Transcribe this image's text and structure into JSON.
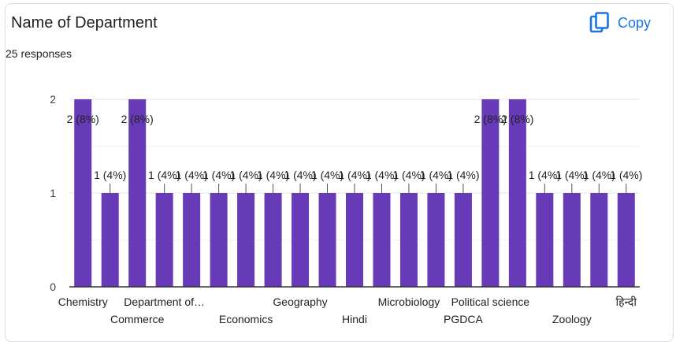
{
  "header": {
    "title": "Name of Department",
    "responses": "25 responses",
    "copy_label": "Copy",
    "copy_icon": "copy-icon",
    "accent_color": "#1a73e8"
  },
  "chart_data": {
    "type": "bar",
    "categories": [
      "Chemistry",
      "",
      "Commerce",
      "Department of…",
      "",
      "",
      "Economics",
      "",
      "Geography",
      "",
      "Hindi",
      "",
      "Microbiology",
      "",
      "PGDCA",
      "Political science",
      "",
      "",
      "Zoology",
      "",
      "हिन्दी"
    ],
    "values": [
      2,
      1,
      2,
      1,
      1,
      1,
      1,
      1,
      1,
      1,
      1,
      1,
      1,
      1,
      1,
      2,
      2,
      1,
      1,
      1,
      1
    ],
    "data_labels": [
      "2 (8%)",
      "1 (4%)",
      "2 (8%)",
      "1 (4%)",
      "1 (4%)",
      "1 (4%)",
      "1 (4%)",
      "1 (4%)",
      "1 (4%)",
      "1 (4%)",
      "1 (4%)",
      "1 (4%)",
      "1 (4%)",
      "1 (4%)",
      "1 (4%)",
      "2 (8%)",
      "2 (8%)",
      "1 (4%)",
      "1 (4%)",
      "1 (4%)",
      "1 (4%)"
    ],
    "y_ticks": [
      "0",
      "1",
      "2"
    ],
    "ylim": [
      0,
      2
    ],
    "grid": true,
    "bar_color": "#673ab7",
    "gridline_color": "#e6e6e6",
    "axis_color": "#333333"
  }
}
